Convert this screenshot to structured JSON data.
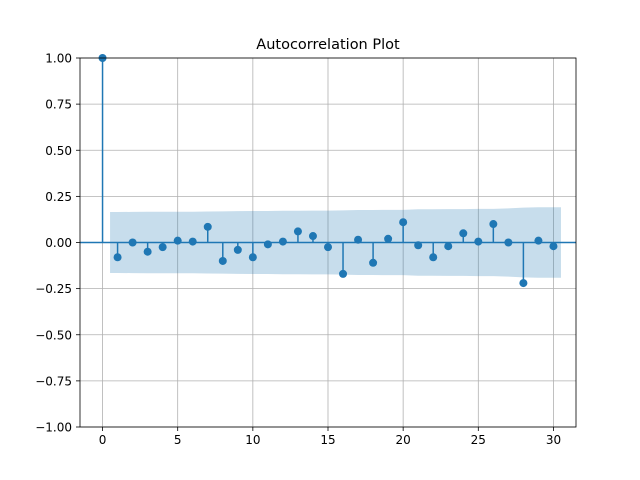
{
  "chart_data": {
    "type": "scatter",
    "subtype": "acf-stem",
    "title": "Autocorrelation Plot",
    "xlabel": "",
    "ylabel": "",
    "xlim": [
      -1.5,
      31.5
    ],
    "ylim": [
      -1.0,
      1.0
    ],
    "x_ticks": [
      0,
      5,
      10,
      15,
      20,
      25,
      30
    ],
    "x_tick_labels": [
      "0",
      "5",
      "10",
      "15",
      "20",
      "25",
      "30"
    ],
    "y_ticks": [
      -1.0,
      -0.75,
      -0.5,
      -0.25,
      0.0,
      0.25,
      0.5,
      0.75,
      1.0
    ],
    "y_tick_labels": [
      "−1.00",
      "−0.75",
      "−0.50",
      "−0.25",
      "0.00",
      "0.25",
      "0.50",
      "0.75",
      "1.00"
    ],
    "grid": true,
    "lags": [
      0,
      1,
      2,
      3,
      4,
      5,
      6,
      7,
      8,
      9,
      10,
      11,
      12,
      13,
      14,
      15,
      16,
      17,
      18,
      19,
      20,
      21,
      22,
      23,
      24,
      25,
      26,
      27,
      28,
      29,
      30
    ],
    "values": [
      1.0,
      -0.08,
      0.0,
      -0.05,
      -0.025,
      0.01,
      0.005,
      0.085,
      -0.1,
      -0.04,
      -0.08,
      -0.01,
      0.005,
      0.06,
      0.035,
      -0.025,
      -0.17,
      0.015,
      -0.11,
      0.02,
      0.11,
      -0.015,
      -0.08,
      -0.02,
      0.05,
      0.005,
      0.1,
      0.0,
      -0.22,
      0.01,
      -0.02
    ],
    "confidence_band": {
      "lags": [
        0.5,
        1,
        2,
        3,
        4,
        5,
        6,
        7,
        8,
        9,
        10,
        11,
        12,
        13,
        14,
        15,
        16,
        17,
        18,
        19,
        20,
        21,
        22,
        23,
        24,
        25,
        26,
        27,
        28,
        29,
        30,
        30.5
      ],
      "upper": [
        0.165,
        0.165,
        0.166,
        0.167,
        0.167,
        0.167,
        0.167,
        0.168,
        0.169,
        0.17,
        0.171,
        0.171,
        0.172,
        0.172,
        0.173,
        0.173,
        0.174,
        0.176,
        0.176,
        0.177,
        0.177,
        0.18,
        0.18,
        0.181,
        0.181,
        0.182,
        0.182,
        0.185,
        0.189,
        0.191,
        0.191,
        0.191
      ]
    },
    "colors": {
      "series": "#1f77b4",
      "band": "#1f77b4",
      "grid": "#b0b0b0",
      "axes": "#000000"
    }
  }
}
